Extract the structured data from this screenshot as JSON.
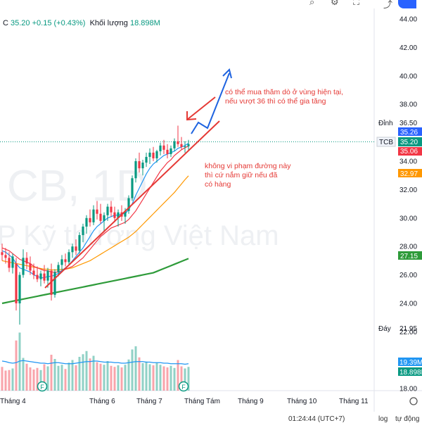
{
  "legend": {
    "ticker_fragment": "C",
    "close": "35.20",
    "change": "+0.15 (+0.43%)",
    "volume_label": "Khối lượng",
    "volume_value": "18.898M"
  },
  "watermark": {
    "symbol_text": "CB, 1D",
    "company_text": "P Kỹ thương Việt Nam"
  },
  "annotations": {
    "buy_note_line1": "có thể mua thăm dò ở vùng hiện tại,",
    "buy_note_line2": "nếu vượt 36 thì có thể gia tăng",
    "hold_note_line1": "không vi phạm đường này",
    "hold_note_line2": "thì cứ nắm giữ nếu đã",
    "hold_note_line3": "có hàng"
  },
  "price_labels": {
    "peak_label": "Đỉnh",
    "peak_value": "36.50",
    "ticker_tag": "TCB",
    "ma_a": "35.26",
    "last_price": "35.20",
    "ma_b": "35.06",
    "ma_c": "32.97",
    "ma_d": "27.15",
    "bottom_label": "Đáy",
    "bottom_value": "21.95",
    "vol_ma": "19.39M",
    "vol_last": "18.898M"
  },
  "status": {
    "time": "01:24:44 (UTC+7)",
    "log": "log",
    "auto": "tự động"
  },
  "colors": {
    "up": "#089981",
    "down": "#f23645",
    "ma_fast": "#2196f3",
    "ma_mid": "#f23645",
    "ma_slow": "#ff9800",
    "ma_long": "#2e9b3a",
    "annotation": "#e53935",
    "arrow_blue": "#1e63e0",
    "trendline": "#e53935"
  },
  "chart_data": {
    "type": "candlestick",
    "y_axis": {
      "min": 18,
      "max": 44,
      "ticks": [
        18,
        20,
        22,
        24,
        26,
        28,
        30,
        32,
        34,
        36,
        38,
        40,
        42,
        44
      ]
    },
    "x_axis": {
      "tick_labels": [
        "Tháng 4",
        "Tháng 6",
        "Tháng 7",
        "Tháng Tám",
        "Tháng 9",
        "Tháng 10",
        "Tháng 11"
      ]
    },
    "candles": [
      {
        "o": 27.6,
        "h": 28.2,
        "l": 27.0,
        "c": 27.4
      },
      {
        "o": 27.4,
        "h": 27.9,
        "l": 26.8,
        "c": 27.2
      },
      {
        "o": 27.2,
        "h": 27.6,
        "l": 26.2,
        "c": 26.5
      },
      {
        "o": 26.5,
        "h": 27.5,
        "l": 26.1,
        "c": 27.3
      },
      {
        "o": 26.8,
        "h": 27.2,
        "l": 23.5,
        "c": 24.0
      },
      {
        "o": 24.0,
        "h": 26.2,
        "l": 22.5,
        "c": 26.0
      },
      {
        "o": 26.0,
        "h": 27.8,
        "l": 25.8,
        "c": 27.2
      },
      {
        "o": 27.2,
        "h": 27.6,
        "l": 26.4,
        "c": 26.8
      },
      {
        "o": 26.8,
        "h": 27.3,
        "l": 26.0,
        "c": 26.3
      },
      {
        "o": 26.3,
        "h": 26.8,
        "l": 25.7,
        "c": 26.0
      },
      {
        "o": 26.0,
        "h": 26.6,
        "l": 25.5,
        "c": 25.7
      },
      {
        "o": 25.7,
        "h": 26.3,
        "l": 25.2,
        "c": 26.1
      },
      {
        "o": 26.1,
        "h": 26.7,
        "l": 25.4,
        "c": 25.6
      },
      {
        "o": 25.6,
        "h": 26.5,
        "l": 25.1,
        "c": 26.3
      },
      {
        "o": 26.3,
        "h": 26.8,
        "l": 24.2,
        "c": 24.6
      },
      {
        "o": 24.6,
        "h": 26.4,
        "l": 24.4,
        "c": 26.2
      },
      {
        "o": 26.2,
        "h": 26.9,
        "l": 25.9,
        "c": 26.7
      },
      {
        "o": 26.7,
        "h": 27.4,
        "l": 26.3,
        "c": 27.1
      },
      {
        "o": 27.1,
        "h": 27.5,
        "l": 26.6,
        "c": 26.9
      },
      {
        "o": 26.9,
        "h": 27.8,
        "l": 26.7,
        "c": 27.6
      },
      {
        "o": 27.6,
        "h": 28.2,
        "l": 27.2,
        "c": 28.0
      },
      {
        "o": 28.0,
        "h": 28.5,
        "l": 27.4,
        "c": 27.7
      },
      {
        "o": 27.7,
        "h": 29.0,
        "l": 27.5,
        "c": 28.8
      },
      {
        "o": 28.8,
        "h": 29.6,
        "l": 28.3,
        "c": 29.4
      },
      {
        "o": 29.4,
        "h": 30.2,
        "l": 28.9,
        "c": 30.0
      },
      {
        "o": 30.0,
        "h": 30.6,
        "l": 29.4,
        "c": 29.7
      },
      {
        "o": 29.7,
        "h": 30.9,
        "l": 29.5,
        "c": 30.6
      },
      {
        "o": 30.6,
        "h": 31.2,
        "l": 29.9,
        "c": 30.3
      },
      {
        "o": 30.3,
        "h": 31.0,
        "l": 29.6,
        "c": 29.8
      },
      {
        "o": 29.8,
        "h": 30.4,
        "l": 29.1,
        "c": 30.2
      },
      {
        "o": 30.2,
        "h": 31.0,
        "l": 29.8,
        "c": 30.8
      },
      {
        "o": 30.8,
        "h": 31.2,
        "l": 30.1,
        "c": 30.4
      },
      {
        "o": 30.4,
        "h": 30.8,
        "l": 29.7,
        "c": 30.0
      },
      {
        "o": 30.0,
        "h": 30.6,
        "l": 29.4,
        "c": 30.4
      },
      {
        "o": 30.4,
        "h": 30.9,
        "l": 29.8,
        "c": 30.1
      },
      {
        "o": 30.1,
        "h": 30.7,
        "l": 29.6,
        "c": 30.5
      },
      {
        "o": 30.5,
        "h": 31.6,
        "l": 30.3,
        "c": 31.4
      },
      {
        "o": 31.4,
        "h": 33.0,
        "l": 31.2,
        "c": 32.8
      },
      {
        "o": 32.8,
        "h": 34.2,
        "l": 32.5,
        "c": 34.0
      },
      {
        "o": 34.0,
        "h": 34.6,
        "l": 33.2,
        "c": 33.5
      },
      {
        "o": 33.5,
        "h": 34.1,
        "l": 33.0,
        "c": 33.9
      },
      {
        "o": 33.9,
        "h": 34.6,
        "l": 33.6,
        "c": 34.3
      },
      {
        "o": 34.3,
        "h": 34.9,
        "l": 33.8,
        "c": 34.6
      },
      {
        "o": 34.6,
        "h": 35.0,
        "l": 34.0,
        "c": 34.2
      },
      {
        "o": 34.2,
        "h": 34.8,
        "l": 33.9,
        "c": 34.7
      },
      {
        "o": 34.7,
        "h": 35.3,
        "l": 34.4,
        "c": 35.1
      },
      {
        "o": 35.1,
        "h": 35.5,
        "l": 34.5,
        "c": 34.8
      },
      {
        "o": 34.8,
        "h": 35.2,
        "l": 34.2,
        "c": 34.5
      },
      {
        "o": 34.5,
        "h": 35.1,
        "l": 34.3,
        "c": 34.9
      },
      {
        "o": 34.9,
        "h": 35.6,
        "l": 34.7,
        "c": 35.4
      },
      {
        "o": 35.4,
        "h": 36.5,
        "l": 35.0,
        "c": 35.2
      },
      {
        "o": 35.2,
        "h": 35.7,
        "l": 34.8,
        "c": 35.0
      },
      {
        "o": 35.0,
        "h": 35.4,
        "l": 34.6,
        "c": 35.05
      },
      {
        "o": 35.05,
        "h": 35.5,
        "l": 34.8,
        "c": 35.2
      }
    ],
    "volume": [
      4.5,
      3.8,
      3.9,
      4.2,
      9.5,
      11.0,
      6.2,
      5.1,
      4.4,
      4.0,
      4.3,
      3.9,
      5.0,
      4.6,
      6.8,
      6.0,
      4.7,
      4.9,
      4.1,
      5.3,
      5.8,
      4.8,
      6.4,
      6.9,
      7.5,
      6.1,
      6.6,
      5.4,
      5.1,
      4.9,
      5.6,
      4.7,
      4.5,
      4.8,
      4.4,
      4.9,
      5.9,
      7.8,
      8.4,
      6.3,
      5.2,
      5.5,
      5.0,
      4.8,
      5.3,
      4.9,
      4.6,
      4.4,
      4.7,
      4.3,
      5.8,
      4.6,
      4.2,
      4.5
    ],
    "volume_ma": [
      5.6,
      5.5,
      5.3,
      5.2,
      5.3,
      5.6,
      5.7,
      5.6,
      5.5,
      5.4,
      5.3,
      5.2,
      5.2,
      5.1,
      5.2,
      5.3,
      5.3,
      5.2,
      5.1,
      5.1,
      5.1,
      5.2,
      5.3,
      5.4,
      5.5,
      5.5,
      5.6,
      5.6,
      5.5,
      5.4,
      5.4,
      5.4,
      5.3,
      5.3,
      5.2,
      5.2,
      5.3,
      5.4,
      5.5,
      5.5,
      5.5,
      5.4,
      5.4,
      5.3,
      5.3,
      5.3,
      5.2,
      5.2,
      5.1,
      5.1,
      5.1,
      5.1,
      5.0,
      5.1
    ],
    "ma_fast": [
      27.7,
      27.6,
      27.4,
      27.2,
      26.8,
      26.5,
      26.4,
      26.3,
      26.2,
      26.0,
      25.9,
      25.8,
      25.8,
      25.9,
      25.9,
      26.0,
      26.1,
      26.3,
      26.5,
      26.7,
      27.0,
      27.3,
      27.6,
      27.9,
      28.3,
      28.7,
      29.1,
      29.4,
      29.6,
      29.8,
      30.0,
      30.1,
      30.2,
      30.2,
      30.3,
      30.3,
      30.6,
      31.0,
      31.6,
      32.1,
      32.6,
      33.1,
      33.5,
      33.8,
      34.0,
      34.2,
      34.4,
      34.5,
      34.6,
      34.7,
      34.9,
      35.0,
      35.1,
      35.26
    ],
    "ma_mid": [
      27.9,
      27.8,
      27.7,
      27.5,
      27.3,
      27.1,
      27.0,
      26.9,
      26.8,
      26.6,
      26.5,
      26.4,
      26.3,
      26.3,
      26.2,
      26.2,
      26.2,
      26.3,
      26.4,
      26.5,
      26.6,
      26.8,
      27.0,
      27.2,
      27.5,
      27.8,
      28.1,
      28.4,
      28.7,
      28.9,
      29.1,
      29.3,
      29.4,
      29.5,
      29.6,
      29.7,
      29.9,
      30.2,
      30.5,
      30.9,
      31.3,
      31.7,
      32.1,
      32.5,
      32.9,
      33.3,
      33.6,
      33.9,
      34.1,
      34.4,
      34.6,
      34.8,
      34.95,
      35.06
    ],
    "ma_slow": [
      27.0,
      26.95,
      26.9,
      26.85,
      26.8,
      26.75,
      26.7,
      26.65,
      26.6,
      26.55,
      26.5,
      26.45,
      26.4,
      26.4,
      26.35,
      26.35,
      26.35,
      26.4,
      26.4,
      26.45,
      26.5,
      26.6,
      26.7,
      26.8,
      26.9,
      27.0,
      27.15,
      27.3,
      27.45,
      27.6,
      27.75,
      27.9,
      28.05,
      28.2,
      28.35,
      28.5,
      28.65,
      28.85,
      29.05,
      29.3,
      29.55,
      29.8,
      30.05,
      30.3,
      30.55,
      30.8,
      31.05,
      31.3,
      31.55,
      31.8,
      32.1,
      32.4,
      32.7,
      32.97
    ],
    "ma_long": [
      24.0,
      24.05,
      24.1,
      24.15,
      24.2,
      24.25,
      24.3,
      24.35,
      24.4,
      24.45,
      24.5,
      24.55,
      24.6,
      24.65,
      24.7,
      24.75,
      24.8,
      24.85,
      24.9,
      24.95,
      25.0,
      25.05,
      25.1,
      25.15,
      25.2,
      25.25,
      25.3,
      25.35,
      25.4,
      25.45,
      25.5,
      25.55,
      25.6,
      25.65,
      25.7,
      25.75,
      25.8,
      25.85,
      25.9,
      25.95,
      26.0,
      26.05,
      26.1,
      26.15,
      26.25,
      26.35,
      26.45,
      26.55,
      26.65,
      26.75,
      26.85,
      26.95,
      27.05,
      27.15
    ]
  }
}
